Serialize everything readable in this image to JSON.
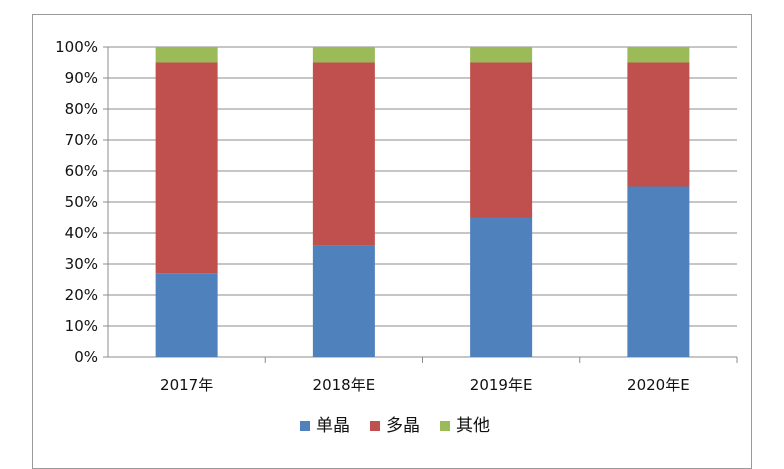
{
  "chart_data": {
    "type": "bar",
    "stacked": true,
    "percent_stacked": true,
    "categories": [
      "2017年",
      "2018年E",
      "2019年E",
      "2020年E"
    ],
    "series": [
      {
        "name": "单晶",
        "color": "#4f81bd",
        "values": [
          27,
          36,
          45,
          55
        ]
      },
      {
        "name": "多晶",
        "color": "#c0504d",
        "values": [
          68,
          59,
          50,
          40
        ]
      },
      {
        "name": "其他",
        "color": "#9bbb59",
        "values": [
          5,
          5,
          5,
          5
        ]
      }
    ],
    "ylim": [
      0,
      100
    ],
    "yticks": [
      "0%",
      "10%",
      "20%",
      "30%",
      "40%",
      "50%",
      "60%",
      "70%",
      "80%",
      "90%",
      "100%"
    ],
    "grid": true,
    "legend_position": "bottom"
  }
}
